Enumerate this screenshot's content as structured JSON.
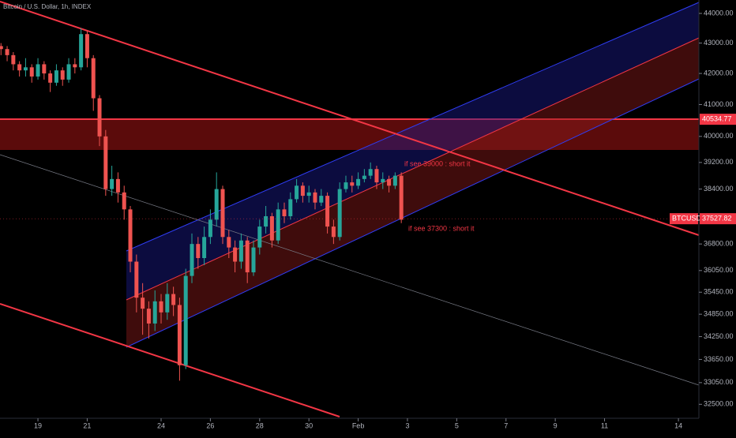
{
  "chart_data": {
    "type": "candlestick",
    "title": "Bitcoin / U.S. Dollar, 1h, INDEX",
    "symbol": "BTCUSD",
    "log": true,
    "up_color": "#26a69a",
    "down_color": "#ef5350",
    "x": [
      -1.5,
      -1.25,
      -1.0,
      -0.75,
      -0.5,
      -0.25,
      0,
      0.25,
      0.5,
      0.75,
      1.0,
      1.25,
      1.5,
      1.75,
      2.0,
      2.25,
      2.5,
      2.75,
      3.0,
      3.25,
      3.5,
      3.75,
      4.0,
      4.25,
      4.5,
      4.75,
      5.0,
      5.25,
      5.5,
      5.75,
      6.0,
      6.25,
      6.5,
      6.75,
      7.0,
      7.25,
      7.5,
      7.75,
      8.0,
      8.25,
      8.5,
      8.75,
      9.0,
      9.25,
      9.5,
      9.75,
      10.0,
      10.25,
      10.5,
      10.75,
      11.0,
      11.25,
      11.5,
      11.75,
      12.0,
      12.25,
      12.5,
      12.75,
      13.0,
      13.25,
      13.5,
      13.75,
      14.0,
      14.25,
      14.5,
      14.75
    ],
    "open": [
      42900,
      42800,
      42600,
      42300,
      42100,
      42200,
      41900,
      42300,
      42000,
      41700,
      42100,
      41800,
      42300,
      42200,
      43300,
      42500,
      41200,
      40000,
      38400,
      38700,
      38300,
      37800,
      36300,
      35300,
      35000,
      34600,
      35200,
      34900,
      35400,
      35100,
      33500,
      35900,
      36800,
      36400,
      37000,
      37500,
      38400,
      37000,
      36700,
      36300,
      36900,
      36000,
      36700,
      37300,
      37600,
      36900,
      37800,
      37600,
      38100,
      38500,
      38200,
      38300,
      38000,
      38200,
      37300,
      37000,
      38400,
      38600,
      38500,
      38700,
      38800,
      39000,
      38600,
      38700,
      38500,
      38800
    ],
    "high": [
      43000,
      42900,
      42700,
      42400,
      42500,
      42300,
      42500,
      42400,
      42100,
      42300,
      42200,
      42500,
      42500,
      43500,
      43400,
      42600,
      41300,
      40200,
      39100,
      38900,
      38500,
      37900,
      36500,
      35700,
      35200,
      35500,
      35400,
      35700,
      35600,
      35300,
      36100,
      37100,
      37000,
      37300,
      37800,
      38900,
      38500,
      37200,
      36900,
      37100,
      37000,
      36900,
      37500,
      37900,
      37700,
      38000,
      38000,
      38300,
      38700,
      38600,
      38500,
      38400,
      38400,
      38300,
      37500,
      38600,
      38800,
      38800,
      38900,
      39000,
      39200,
      39100,
      38900,
      38800,
      38900,
      38900
    ],
    "low": [
      42600,
      42400,
      42100,
      41900,
      41900,
      41700,
      41800,
      41800,
      41400,
      41600,
      41600,
      41700,
      42000,
      42100,
      42200,
      40800,
      39700,
      38200,
      38200,
      38000,
      37500,
      36000,
      34900,
      34300,
      34200,
      34400,
      34600,
      34700,
      34800,
      33100,
      33400,
      35700,
      36100,
      36200,
      36800,
      37300,
      36800,
      36400,
      36000,
      36100,
      35700,
      35900,
      36500,
      37100,
      36700,
      36800,
      37400,
      37500,
      38000,
      38000,
      38000,
      37800,
      37900,
      37100,
      36800,
      36900,
      38300,
      38300,
      38400,
      38600,
      38700,
      38400,
      38400,
      38300,
      38400,
      37400
    ],
    "close": [
      42800,
      42600,
      42300,
      42100,
      42200,
      41900,
      42300,
      42000,
      41700,
      42100,
      41800,
      42300,
      42200,
      43300,
      42500,
      41200,
      40000,
      38400,
      38700,
      38300,
      37800,
      36300,
      35300,
      35000,
      34600,
      35200,
      34900,
      35400,
      35100,
      33500,
      35900,
      36800,
      36400,
      37000,
      37500,
      38400,
      37000,
      36700,
      36300,
      36900,
      36000,
      36700,
      37300,
      37600,
      36900,
      37800,
      37600,
      38100,
      38500,
      38200,
      38300,
      38000,
      38200,
      37300,
      37000,
      38400,
      38600,
      38500,
      38700,
      38800,
      39000,
      38600,
      38700,
      38500,
      38800,
      37500
    ],
    "xlim": [
      -1.54,
      26.83
    ],
    "xticks": [
      {
        "value": 0,
        "label": "19"
      },
      {
        "value": 2,
        "label": "21"
      },
      {
        "value": 5,
        "label": "24"
      },
      {
        "value": 7,
        "label": "26"
      },
      {
        "value": 9,
        "label": "28"
      },
      {
        "value": 11,
        "label": "30"
      },
      {
        "value": 13,
        "label": "Feb"
      },
      {
        "value": 15,
        "label": "3"
      },
      {
        "value": 17,
        "label": "5"
      },
      {
        "value": 19,
        "label": "7"
      },
      {
        "value": 21,
        "label": "9"
      },
      {
        "value": 23,
        "label": "11"
      },
      {
        "value": 26,
        "label": "14"
      }
    ],
    "ylim": [
      32150,
      44460
    ],
    "yticks": [
      {
        "value": 44000,
        "label": "44000.00"
      },
      {
        "value": 43000,
        "label": "43000.00"
      },
      {
        "value": 42000,
        "label": "42000.00"
      },
      {
        "value": 41000,
        "label": "41000.00"
      },
      {
        "value": 40000,
        "label": "40000.00"
      },
      {
        "value": 39200,
        "label": "39200.00"
      },
      {
        "value": 38400,
        "label": "38400.00"
      },
      {
        "value": 36800,
        "label": "36800.00"
      },
      {
        "value": 36050,
        "label": "36050.00"
      },
      {
        "value": 35450,
        "label": "35450.00"
      },
      {
        "value": 34850,
        "label": "34850.00"
      },
      {
        "value": 34250,
        "label": "34250.00"
      },
      {
        "value": 33650,
        "label": "33650.00"
      },
      {
        "value": 33050,
        "label": "33050.00"
      },
      {
        "value": 32500,
        "label": "32500.00"
      }
    ],
    "level_price": 40534.77,
    "last_price": 37527.82,
    "annotations": [
      "if see 39000 : short it",
      "if see 37300 : short it"
    ]
  }
}
